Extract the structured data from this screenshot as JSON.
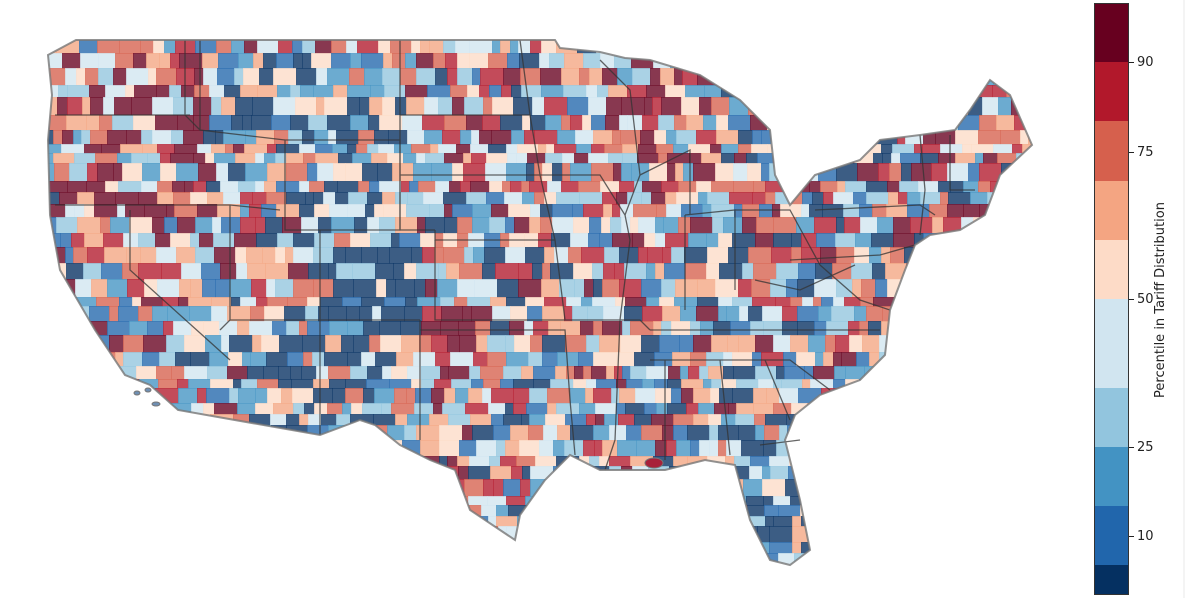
{
  "map": {
    "type": "choropleth",
    "region": "contiguous-united-states",
    "units": "counties",
    "color_scale": "diverging-red-blue",
    "outline_color": "#555555"
  },
  "colorbar": {
    "title": "Percentile in Tariff Distribution",
    "bins": [
      {
        "from": 0,
        "to": 5,
        "color": "#053061"
      },
      {
        "from": 5,
        "to": 15,
        "color": "#2166ac"
      },
      {
        "from": 15,
        "to": 25,
        "color": "#4393c3"
      },
      {
        "from": 25,
        "to": 35,
        "color": "#92c5de"
      },
      {
        "from": 35,
        "to": 50,
        "color": "#d1e5f0"
      },
      {
        "from": 50,
        "to": 60,
        "color": "#fddbc7"
      },
      {
        "from": 60,
        "to": 70,
        "color": "#f4a582"
      },
      {
        "from": 70,
        "to": 80,
        "color": "#d6604d"
      },
      {
        "from": 80,
        "to": 90,
        "color": "#b2182b"
      },
      {
        "from": 90,
        "to": 100,
        "color": "#67001f"
      }
    ],
    "ticks": [
      "10",
      "25",
      "50",
      "75",
      "90"
    ]
  }
}
